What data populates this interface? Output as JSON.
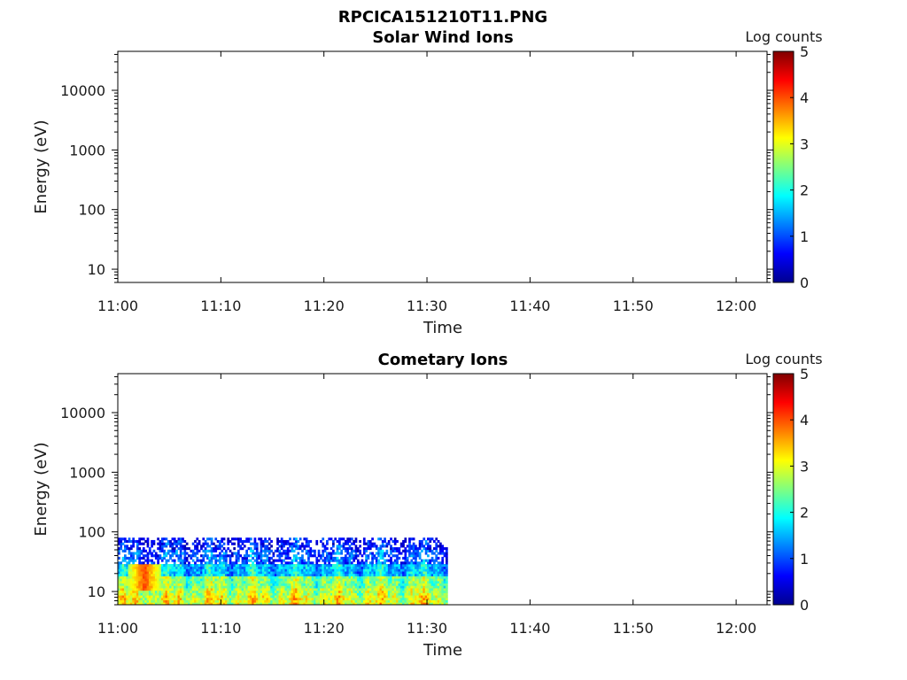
{
  "figure": {
    "title": "RPCICA151210T11.PNG"
  },
  "chart_data": [
    {
      "type": "heatmap",
      "title": "Solar Wind Ions",
      "xlabel": "Time",
      "ylabel": "Energy (eV)",
      "y_scale": "log",
      "ylim": [
        6,
        45000
      ],
      "xlim": [
        "11:00",
        "12:03"
      ],
      "x_ticks": [
        "11:00",
        "11:10",
        "11:20",
        "11:30",
        "11:40",
        "11:50",
        "12:00"
      ],
      "y_ticks": [
        "10",
        "100",
        "1000",
        "10000"
      ],
      "colorbar": {
        "label": "Log counts",
        "range": [
          0,
          5
        ],
        "ticks": [
          "0",
          "1",
          "2",
          "3",
          "4",
          "5"
        ],
        "colormap": "jet"
      },
      "data": []
    },
    {
      "type": "heatmap",
      "title": "Cometary Ions",
      "xlabel": "Time",
      "ylabel": "Energy (eV)",
      "y_scale": "log",
      "ylim": [
        6,
        45000
      ],
      "xlim": [
        "11:00",
        "12:03"
      ],
      "x_ticks": [
        "11:00",
        "11:10",
        "11:20",
        "11:30",
        "11:40",
        "11:50",
        "12:00"
      ],
      "y_ticks": [
        "10",
        "100",
        "1000",
        "10000"
      ],
      "colorbar": {
        "label": "Log counts",
        "range": [
          0,
          5
        ],
        "ticks": [
          "0",
          "1",
          "2",
          "3",
          "4",
          "5"
        ],
        "colormap": "jet"
      },
      "data_time_range": [
        "11:00",
        "11:32"
      ],
      "data_energy_range": [
        6,
        80
      ],
      "energy_bands": [
        {
          "energy_range": [
            6,
            9
          ],
          "log_counts": 3.0
        },
        {
          "energy_range": [
            9,
            12
          ],
          "log_counts": 2.8
        },
        {
          "energy_range": [
            12,
            18
          ],
          "log_counts": 2.5
        },
        {
          "energy_range": [
            18,
            30
          ],
          "log_counts": 1.6
        },
        {
          "energy_range": [
            30,
            50
          ],
          "log_counts": 1.0
        },
        {
          "energy_range": [
            50,
            80
          ],
          "log_counts": 0.6
        }
      ],
      "feature": {
        "time_range": [
          "11:01",
          "11:04"
        ],
        "energy_range": [
          10,
          30
        ],
        "log_counts": 4.0
      }
    }
  ]
}
